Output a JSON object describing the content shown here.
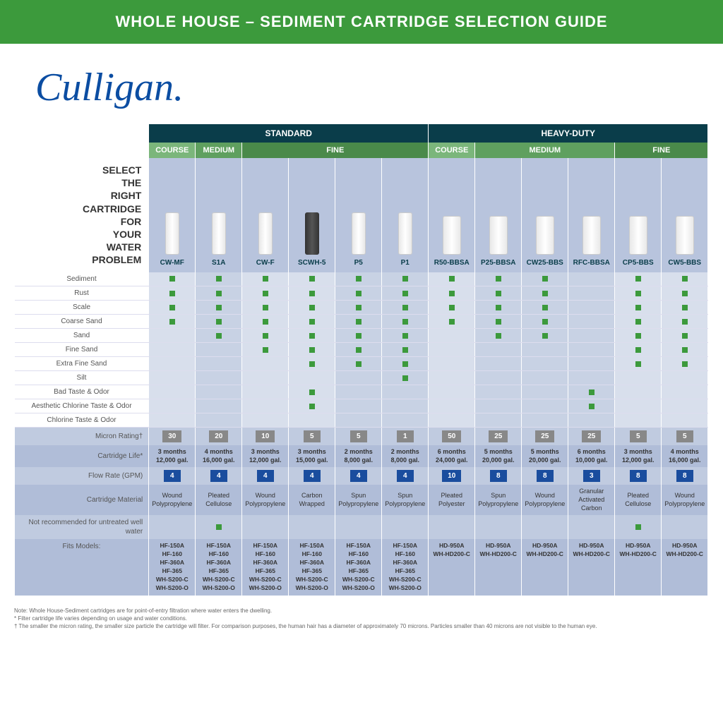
{
  "banner": "WHOLE HOUSE – SEDIMENT CARTRIDGE SELECTION GUIDE",
  "logo": "Culligan.",
  "selectLabel": "SELECT THE RIGHT CARTRIDGE FOR YOUR WATER PROBLEM",
  "categories": [
    "STANDARD",
    "HEAVY-DUTY"
  ],
  "catSpans": [
    6,
    6
  ],
  "grades": [
    {
      "label": "COURSE",
      "cls": "g-course",
      "span": 1
    },
    {
      "label": "MEDIUM",
      "cls": "g-medium",
      "span": 1
    },
    {
      "label": "FINE",
      "cls": "g-fine",
      "span": 4
    },
    {
      "label": "COURSE",
      "cls": "g-course",
      "span": 1
    },
    {
      "label": "MEDIUM",
      "cls": "g-medium",
      "span": 3
    },
    {
      "label": "FINE",
      "cls": "g-fine",
      "span": 2
    }
  ],
  "products": [
    {
      "name": "CW-MF",
      "img": "ci-white"
    },
    {
      "name": "S1A",
      "img": "ci-white"
    },
    {
      "name": "CW-F",
      "img": "ci-white"
    },
    {
      "name": "SCWH-5",
      "img": "ci-dark"
    },
    {
      "name": "P5",
      "img": "ci-white"
    },
    {
      "name": "P1",
      "img": "ci-white"
    },
    {
      "name": "R50-BBSA",
      "img": "ci-white ci-big"
    },
    {
      "name": "P25-BBSA",
      "img": "ci-white ci-big"
    },
    {
      "name": "CW25-BBS",
      "img": "ci-white ci-big"
    },
    {
      "name": "RFC-BBSA",
      "img": "ci-white ci-big"
    },
    {
      "name": "CP5-BBS",
      "img": "ci-white ci-big"
    },
    {
      "name": "CW5-BBS",
      "img": "ci-white ci-big"
    }
  ],
  "features": [
    {
      "label": "Sediment",
      "marks": [
        1,
        1,
        1,
        1,
        1,
        1,
        1,
        1,
        1,
        0,
        1,
        1
      ]
    },
    {
      "label": "Rust",
      "marks": [
        1,
        1,
        1,
        1,
        1,
        1,
        1,
        1,
        1,
        0,
        1,
        1
      ]
    },
    {
      "label": "Scale",
      "marks": [
        1,
        1,
        1,
        1,
        1,
        1,
        1,
        1,
        1,
        0,
        1,
        1
      ]
    },
    {
      "label": "Coarse Sand",
      "marks": [
        1,
        1,
        1,
        1,
        1,
        1,
        1,
        1,
        1,
        0,
        1,
        1
      ]
    },
    {
      "label": "Sand",
      "marks": [
        0,
        1,
        1,
        1,
        1,
        1,
        0,
        1,
        1,
        0,
        1,
        1
      ]
    },
    {
      "label": "Fine Sand",
      "marks": [
        0,
        0,
        1,
        1,
        1,
        1,
        0,
        0,
        0,
        0,
        1,
        1
      ]
    },
    {
      "label": "Extra Fine Sand",
      "marks": [
        0,
        0,
        0,
        1,
        1,
        1,
        0,
        0,
        0,
        0,
        1,
        1
      ]
    },
    {
      "label": "Silt",
      "marks": [
        0,
        0,
        0,
        0,
        0,
        1,
        0,
        0,
        0,
        0,
        0,
        0
      ]
    },
    {
      "label": "Bad Taste & Odor",
      "marks": [
        0,
        0,
        0,
        1,
        0,
        0,
        0,
        0,
        0,
        1,
        0,
        0
      ]
    },
    {
      "label": "Aesthetic Chlorine Taste & Odor",
      "marks": [
        0,
        0,
        0,
        1,
        0,
        0,
        0,
        0,
        0,
        1,
        0,
        0
      ]
    },
    {
      "label": "Chlorine Taste & Odor",
      "marks": [
        0,
        0,
        0,
        0,
        0,
        0,
        0,
        0,
        0,
        0,
        0,
        0
      ]
    }
  ],
  "specs": {
    "micron": {
      "label": "Micron Rating†",
      "vals": [
        "30",
        "20",
        "10",
        "5",
        "5",
        "1",
        "50",
        "25",
        "25",
        "25",
        "5",
        "5"
      ]
    },
    "life": {
      "label": "Cartridge Life*",
      "vals": [
        "3 months\n12,000 gal.",
        "4 months\n16,000 gal.",
        "3 months\n12,000 gal.",
        "3 months\n15,000 gal.",
        "2 months\n8,000 gal.",
        "2 months\n8,000 gal.",
        "6 months\n24,000 gal.",
        "5 months\n20,000 gal.",
        "5 months\n20,000 gal.",
        "6 months\n10,000 gal.",
        "3 months\n12,000 gal.",
        "4 months\n16,000 gal."
      ]
    },
    "flow": {
      "label": "Flow Rate (GPM)",
      "vals": [
        "4",
        "4",
        "4",
        "4",
        "4",
        "4",
        "10",
        "8",
        "8",
        "3",
        "8",
        "8"
      ]
    },
    "material": {
      "label": "Cartridge Material",
      "vals": [
        "Wound\nPolypropylene",
        "Pleated\nCellulose",
        "Wound\nPolypropylene",
        "Carbon\nWrapped",
        "Spun\nPolypropylene",
        "Spun\nPolypropylene",
        "Pleated\nPolyester",
        "Spun\nPolypropylene",
        "Wound\nPolypropylene",
        "Granular\nActivated\nCarbon",
        "Pleated\nCellulose",
        "Wound\nPolypropylene"
      ]
    },
    "notrec": {
      "label": "Not recommended for untreated well water",
      "marks": [
        0,
        1,
        0,
        0,
        0,
        0,
        0,
        0,
        0,
        0,
        1,
        0
      ]
    }
  },
  "fits": {
    "label": "Fits Models:",
    "std": "HF-150A\nHF-160\nHF-360A\nHF-365\nWH-S200-C\nWH-S200-O",
    "hd": "HD-950A\nWH-HD200-C"
  },
  "notes": [
    "Note: Whole House-Sediment cartridges are for point-of-entry filtration where water enters the dwelling.",
    "* Filter cartridge life varies depending on usage and water conditions.",
    "† The smaller the micron rating, the smaller size particle the cartridge will filter. For comparison purposes, the human hair has a diameter of approximately 70 microns. Particles smaller than 40 microns are not visible to the human eye."
  ],
  "bgPattern": [
    "bg-a",
    "bg-b",
    "bg-a",
    "bg-a",
    "bg-b",
    "bg-b",
    "bg-a",
    "bg-b",
    "bg-b",
    "bg-b",
    "bg-a",
    "bg-a"
  ]
}
